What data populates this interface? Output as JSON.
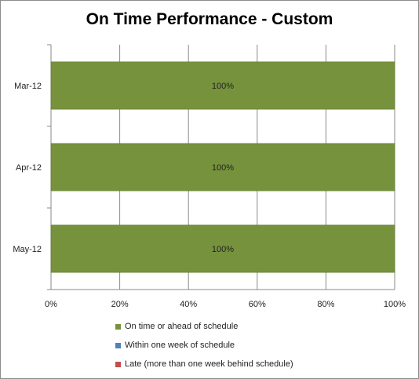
{
  "chart_data": {
    "type": "bar",
    "orientation": "horizontal",
    "stacked": true,
    "title": "On Time Performance - Custom",
    "categories": [
      "Mar-12",
      "Apr-12",
      "May-12"
    ],
    "series": [
      {
        "name": "On time  or ahead of schedule",
        "values": [
          100,
          100,
          100
        ],
        "color": "#76923c"
      },
      {
        "name": "Within one week of schedule",
        "values": [
          0,
          0,
          0
        ],
        "color": "#4f81bd"
      },
      {
        "name": "Late (more than one week behind schedule)",
        "values": [
          0,
          0,
          0
        ],
        "color": "#c0504d"
      }
    ],
    "data_labels": [
      "100%",
      "100%",
      "100%"
    ],
    "x_ticks": [
      "0%",
      "20%",
      "40%",
      "60%",
      "80%",
      "100%"
    ],
    "xlim": [
      0,
      100
    ],
    "grid": true,
    "legend_position": "bottom"
  }
}
